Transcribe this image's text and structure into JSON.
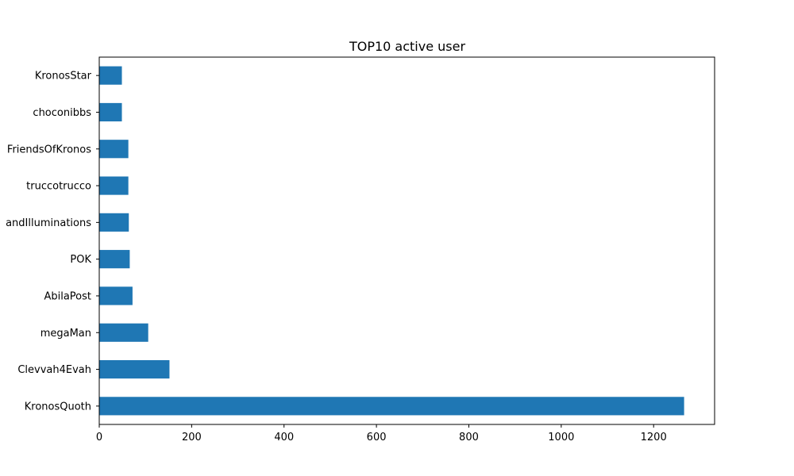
{
  "chart_data": {
    "type": "bar",
    "orientation": "horizontal",
    "title": "TOP10 active user",
    "xlabel": "",
    "ylabel": "",
    "xlim": [
      0,
      1332
    ],
    "x_ticks": [
      0,
      200,
      400,
      600,
      800,
      1000,
      1200
    ],
    "grid": false,
    "bar_color": "#1f77b4",
    "categories": [
      "KronosQuoth",
      "Clevvah4Evah",
      "megaMan",
      "AbilaPost",
      "POK",
      "andIlluminations",
      "truccotrucco",
      "FriendsOfKronos",
      "choconibbs",
      "KronosStar"
    ],
    "values": [
      1266,
      152,
      106,
      72,
      66,
      64,
      63,
      63,
      49,
      49
    ]
  }
}
